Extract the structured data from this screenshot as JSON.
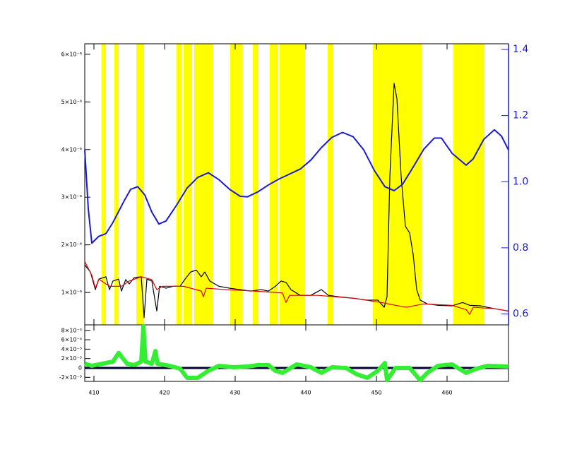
{
  "chart_data": [
    {
      "type": "line",
      "xlim": [
        408.7,
        468.7
      ],
      "ylim": [
        3.2e-07,
        6.22e-06
      ],
      "y2lim": [
        0.567,
        1.417
      ],
      "yticks": [
        {
          "value": 1e-06,
          "label": "1×10⁻⁶"
        },
        {
          "value": 2e-06,
          "label": "2×10⁻⁶"
        },
        {
          "value": 3e-06,
          "label": "3×10⁻⁶"
        },
        {
          "value": 4e-06,
          "label": "4×10⁻⁶"
        },
        {
          "value": 5e-06,
          "label": "5×10⁻⁶"
        },
        {
          "value": 6e-06,
          "label": "6×10⁻⁶"
        }
      ],
      "y2ticks": [
        0.6,
        0.8,
        {
          "value": 1,
          "label": "1.0"
        },
        1.2,
        1.4
      ],
      "y2color": "#1a1ad6",
      "shaded_color": "#ffff00",
      "shaded_regions": [
        [
          411.1,
          411.7
        ],
        [
          412.9,
          413.5
        ],
        [
          416.0,
          417.1
        ],
        [
          421.7,
          422.4
        ],
        [
          422.7,
          423.9
        ],
        [
          424.2,
          426.8
        ],
        [
          429.3,
          431.0
        ],
        [
          432.5,
          433.3
        ],
        [
          434.9,
          436.0
        ],
        [
          436.3,
          439.9
        ],
        [
          443.1,
          443.9
        ],
        [
          449.5,
          456.4
        ],
        [
          460.9,
          465.3
        ]
      ],
      "series": [
        {
          "color": "#000000",
          "x": [
            408.7,
            409.5,
            410.2,
            410.7,
            411.7,
            412.2,
            412.7,
            413.5,
            413.9,
            414.5,
            415.0,
            415.7,
            416.7,
            417.1,
            417.5,
            418.2,
            418.9,
            419.3,
            420.2,
            421.2,
            422.2,
            422.9,
            423.7,
            424.5,
            425.2,
            425.7,
            426.4,
            427.7,
            429.2,
            430.7,
            432.2,
            433.7,
            434.7,
            435.7,
            436.5,
            437.2,
            437.9,
            439.2,
            440.7,
            442.2,
            443.2,
            444.7,
            446.7,
            448.7,
            450.2,
            451.1,
            451.5,
            451.9,
            452.5,
            452.9,
            453.5,
            454.1,
            454.7,
            455.2,
            455.7,
            456.2,
            457.2,
            458.7,
            460.7,
            462.2,
            463.2,
            464.7,
            466.7,
            468.7
          ],
          "values": [
            1.58e-06,
            1.43e-06,
            1.06e-06,
            1.28e-06,
            1.33e-06,
            1.06e-06,
            1.24e-06,
            1.28e-06,
            1.03e-06,
            1.27e-06,
            1.18e-06,
            1.31e-06,
            1.33e-06,
            4.7e-07,
            1.28e-06,
            1.24e-06,
            6.1e-07,
            1.13e-06,
            1.09e-06,
            1.13e-06,
            1.13e-06,
            1.28e-06,
            1.43e-06,
            1.47e-06,
            1.33e-06,
            1.43e-06,
            1.24e-06,
            1.13e-06,
            1.09e-06,
            1.06e-06,
            1.03e-06,
            1.06e-06,
            1.03e-06,
            1.13e-06,
            1.24e-06,
            1.21e-06,
            1.06e-06,
            9.4e-07,
            9.4e-07,
            1.06e-06,
            9.4e-07,
            9.1e-07,
            8.8e-07,
            8.4e-07,
            8.4e-07,
            6.9e-07,
            9.1e-07,
            3.43e-06,
            5.39e-06,
            5.07e-06,
            3.43e-06,
            2.39e-06,
            2.25e-06,
            1.8e-06,
            1.06e-06,
            8.4e-07,
            7.6e-07,
            7.3e-07,
            7.2e-07,
            7.9e-07,
            7.3e-07,
            7.2e-07,
            6.6e-07,
            6.1e-07
          ]
        },
        {
          "color": "#dd0000",
          "x": [
            408.7,
            409.7,
            410.2,
            410.7,
            412.2,
            413.9,
            415.0,
            416.7,
            418.2,
            418.9,
            419.7,
            422.7,
            425.2,
            425.5,
            425.9,
            428.7,
            432.7,
            436.7,
            437.2,
            437.7,
            441.7,
            446.7,
            450.7,
            452.7,
            454.2,
            456.7,
            460.7,
            462.7,
            463.2,
            463.7,
            466.7,
            468.7
          ],
          "values": [
            1.65e-06,
            1.36e-06,
            1.09e-06,
            1.28e-06,
            1.13e-06,
            1.13e-06,
            1.24e-06,
            1.33e-06,
            1.27e-06,
            1.06e-06,
            1.13e-06,
            1.13e-06,
            1.03e-06,
            9.1e-07,
            1.09e-06,
            1.06e-06,
            1.03e-06,
            9.9e-07,
            7.9e-07,
            9.4e-07,
            9.4e-07,
            8.8e-07,
            7.9e-07,
            7.3e-07,
            6.9e-07,
            7.6e-07,
            7.3e-07,
            6.4e-07,
            5.4e-07,
            6.9e-07,
            6.6e-07,
            6.1e-07
          ]
        },
        {
          "color": "#1a1ad6",
          "axis": "y2",
          "x": [
            408.7,
            409.2,
            409.7,
            410.7,
            411.7,
            412.7,
            414.2,
            415.2,
            416.2,
            417.2,
            418.2,
            419.2,
            420.2,
            421.7,
            423.2,
            424.7,
            426.2,
            427.7,
            429.2,
            430.7,
            431.7,
            433.2,
            434.7,
            436.2,
            437.7,
            439.2,
            440.7,
            442.2,
            443.7,
            445.2,
            446.7,
            448.2,
            449.7,
            451.2,
            452.5,
            453.7,
            455.2,
            456.7,
            458.2,
            459.2,
            460.7,
            462.7,
            463.7,
            465.2,
            466.7,
            467.7,
            468.7
          ],
          "values": [
            1.096,
            0.918,
            0.814,
            0.835,
            0.843,
            0.877,
            0.939,
            0.977,
            0.985,
            0.96,
            0.908,
            0.872,
            0.881,
            0.929,
            0.981,
            1.013,
            1.027,
            1.006,
            0.977,
            0.956,
            0.954,
            0.969,
            0.99,
            1.008,
            1.023,
            1.038,
            1.065,
            1.103,
            1.134,
            1.149,
            1.136,
            1.096,
            1.034,
            0.985,
            0.973,
            0.992,
            1.044,
            1.098,
            1.132,
            1.132,
            1.086,
            1.05,
            1.069,
            1.128,
            1.157,
            1.138,
            1.096
          ]
        }
      ]
    },
    {
      "type": "line",
      "xlim": [
        408.7,
        468.7
      ],
      "xticks": [
        410,
        420,
        430,
        440,
        450,
        460
      ],
      "ylim": [
        -0.00286,
        0.00917
      ],
      "yticks": [
        {
          "value": -0.002,
          "label": "-2×10⁻³"
        },
        0,
        {
          "value": 0.002,
          "label": "2×10⁻³"
        },
        {
          "value": 0.004,
          "label": "4×10⁻³"
        },
        {
          "value": 0.006,
          "label": "6×10⁻³"
        },
        {
          "value": 0.008,
          "label": "8×10⁻³"
        }
      ],
      "series": [
        {
          "color": "#33ee33",
          "x": [
            408.7,
            409.7,
            411.2,
            412.7,
            413.5,
            413.9,
            414.7,
            415.7,
            416.7,
            417.0,
            417.3,
            418.2,
            418.7,
            419.0,
            420.7,
            422.2,
            423.2,
            424.7,
            426.2,
            427.7,
            429.7,
            431.7,
            433.2,
            434.7,
            435.7,
            436.7,
            438.7,
            440.7,
            442.2,
            443.7,
            445.7,
            447.2,
            448.7,
            450.2,
            451.2,
            451.5,
            452.7,
            454.7,
            456.2,
            457.2,
            458.7,
            460.7,
            462.7,
            464.2,
            465.7,
            468.7
          ],
          "values": [
            0.0009,
            0.00045,
            0.0009,
            0.00135,
            0.0032,
            0.0024,
            0.0009,
            0.0006,
            0.00135,
            0.0089,
            0.00135,
            0.0009,
            0.0036,
            0.0009,
            0.00045,
            -0.00015,
            -0.0021,
            -0.0021,
            -0.0006,
            0.00045,
            0.00015,
            0.0003,
            0.0006,
            0.0006,
            -0.0006,
            -0.00105,
            0.00075,
            0.00015,
            -0.00105,
            0.00015,
            0,
            -0.00135,
            -0.0021,
            -0.0006,
            0.00105,
            -0.0026,
            0,
            0,
            -0.0026,
            -0.00105,
            0.00045,
            0.00075,
            -0.00105,
            -0.00015,
            0.00045,
            0.0003
          ]
        }
      ]
    }
  ]
}
